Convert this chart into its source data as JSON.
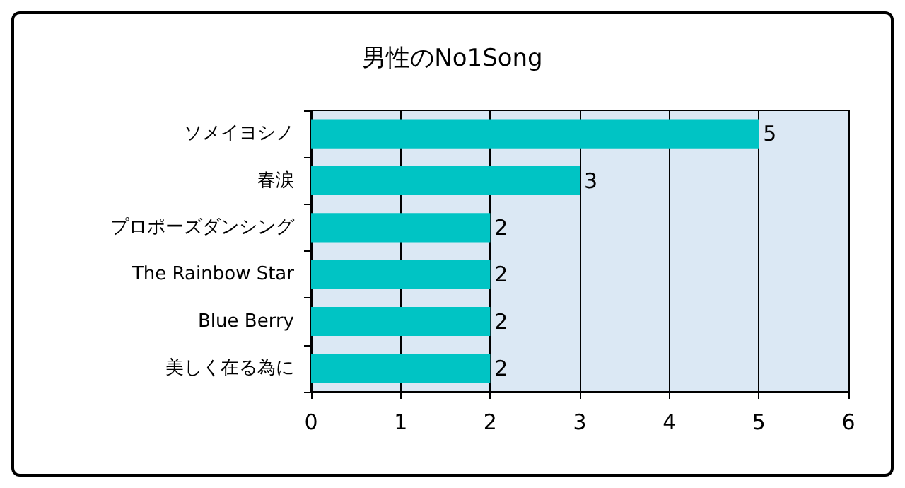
{
  "chart_data": {
    "type": "bar",
    "orientation": "horizontal",
    "title": "男性のNo1Song",
    "categories": [
      "ソメイヨシノ",
      "春涙",
      "プロポーズダンシング",
      "The Rainbow Star",
      "Blue Berry",
      "美しく在る為に"
    ],
    "values": [
      5,
      3,
      2,
      2,
      2,
      2
    ],
    "color": "#00c4c4",
    "xlim": [
      0,
      6
    ],
    "xticks": [
      0,
      1,
      2,
      3,
      4,
      5,
      6
    ],
    "grid": "x",
    "data_labels": true
  }
}
